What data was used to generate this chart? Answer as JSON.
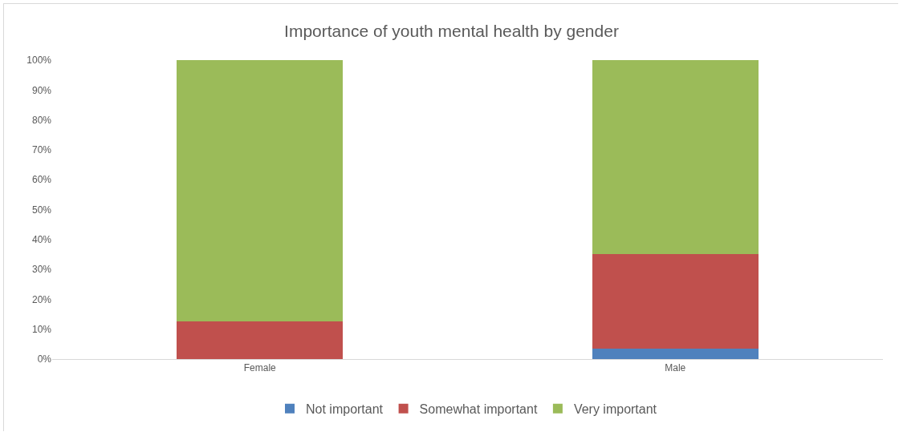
{
  "chart_data": {
    "type": "bar",
    "title": "Importance of youth mental health by gender",
    "stacked": true,
    "categories": [
      "Female",
      "Male"
    ],
    "series": [
      {
        "name": "Not important",
        "color": "#4f81bd",
        "values": [
          0,
          3.5
        ]
      },
      {
        "name": "Somewhat important",
        "color": "#c0504d",
        "values": [
          12.5,
          31.5
        ]
      },
      {
        "name": "Very important",
        "color": "#9bbb59",
        "values": [
          87.5,
          65
        ]
      }
    ],
    "ylim": [
      0,
      100
    ],
    "yticks": [
      {
        "value": 0,
        "label": "0%"
      },
      {
        "value": 10,
        "label": "10%"
      },
      {
        "value": 20,
        "label": "20%"
      },
      {
        "value": 30,
        "label": "30%"
      },
      {
        "value": 40,
        "label": "40%"
      },
      {
        "value": 50,
        "label": "50%"
      },
      {
        "value": 60,
        "label": "60%"
      },
      {
        "value": 70,
        "label": "70%"
      },
      {
        "value": 80,
        "label": "80%"
      },
      {
        "value": 90,
        "label": "90%"
      },
      {
        "value": 100,
        "label": "100%"
      }
    ],
    "grid": false,
    "legend": "bottom"
  }
}
